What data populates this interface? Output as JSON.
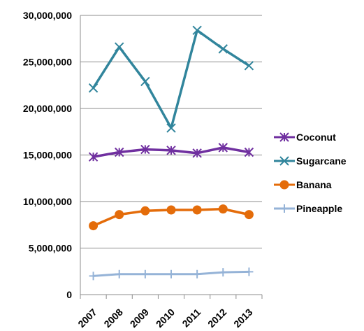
{
  "chart_data": {
    "type": "line",
    "title": "",
    "xlabel": "",
    "ylabel": "",
    "categories": [
      "2007",
      "2008",
      "2009",
      "2010",
      "2011",
      "2012",
      "2013"
    ],
    "ylim": [
      0,
      30000000
    ],
    "yticks": [
      0,
      5000000,
      10000000,
      15000000,
      20000000,
      25000000,
      30000000
    ],
    "ytick_labels": [
      "0",
      "5,000,000",
      "10,000,000",
      "15,000,000",
      "20,000,000",
      "25,000,000",
      "30,000,000"
    ],
    "grid": true,
    "legend_position": "right",
    "series": [
      {
        "name": "Coconut",
        "color": "#7030a0",
        "marker": "x-star",
        "values": [
          14800000,
          15300000,
          15600000,
          15500000,
          15200000,
          15800000,
          15300000
        ]
      },
      {
        "name": "Sugarcane",
        "color": "#31859c",
        "marker": "x",
        "values": [
          22200000,
          26600000,
          22900000,
          17900000,
          28400000,
          26400000,
          24600000
        ]
      },
      {
        "name": "Banana",
        "color": "#e46c0a",
        "marker": "circle",
        "values": [
          7400000,
          8600000,
          9000000,
          9100000,
          9100000,
          9200000,
          8600000
        ]
      },
      {
        "name": "Pineapple",
        "color": "#95b3d7",
        "marker": "plus",
        "values": [
          2000000,
          2200000,
          2200000,
          2200000,
          2200000,
          2400000,
          2450000
        ]
      }
    ]
  }
}
